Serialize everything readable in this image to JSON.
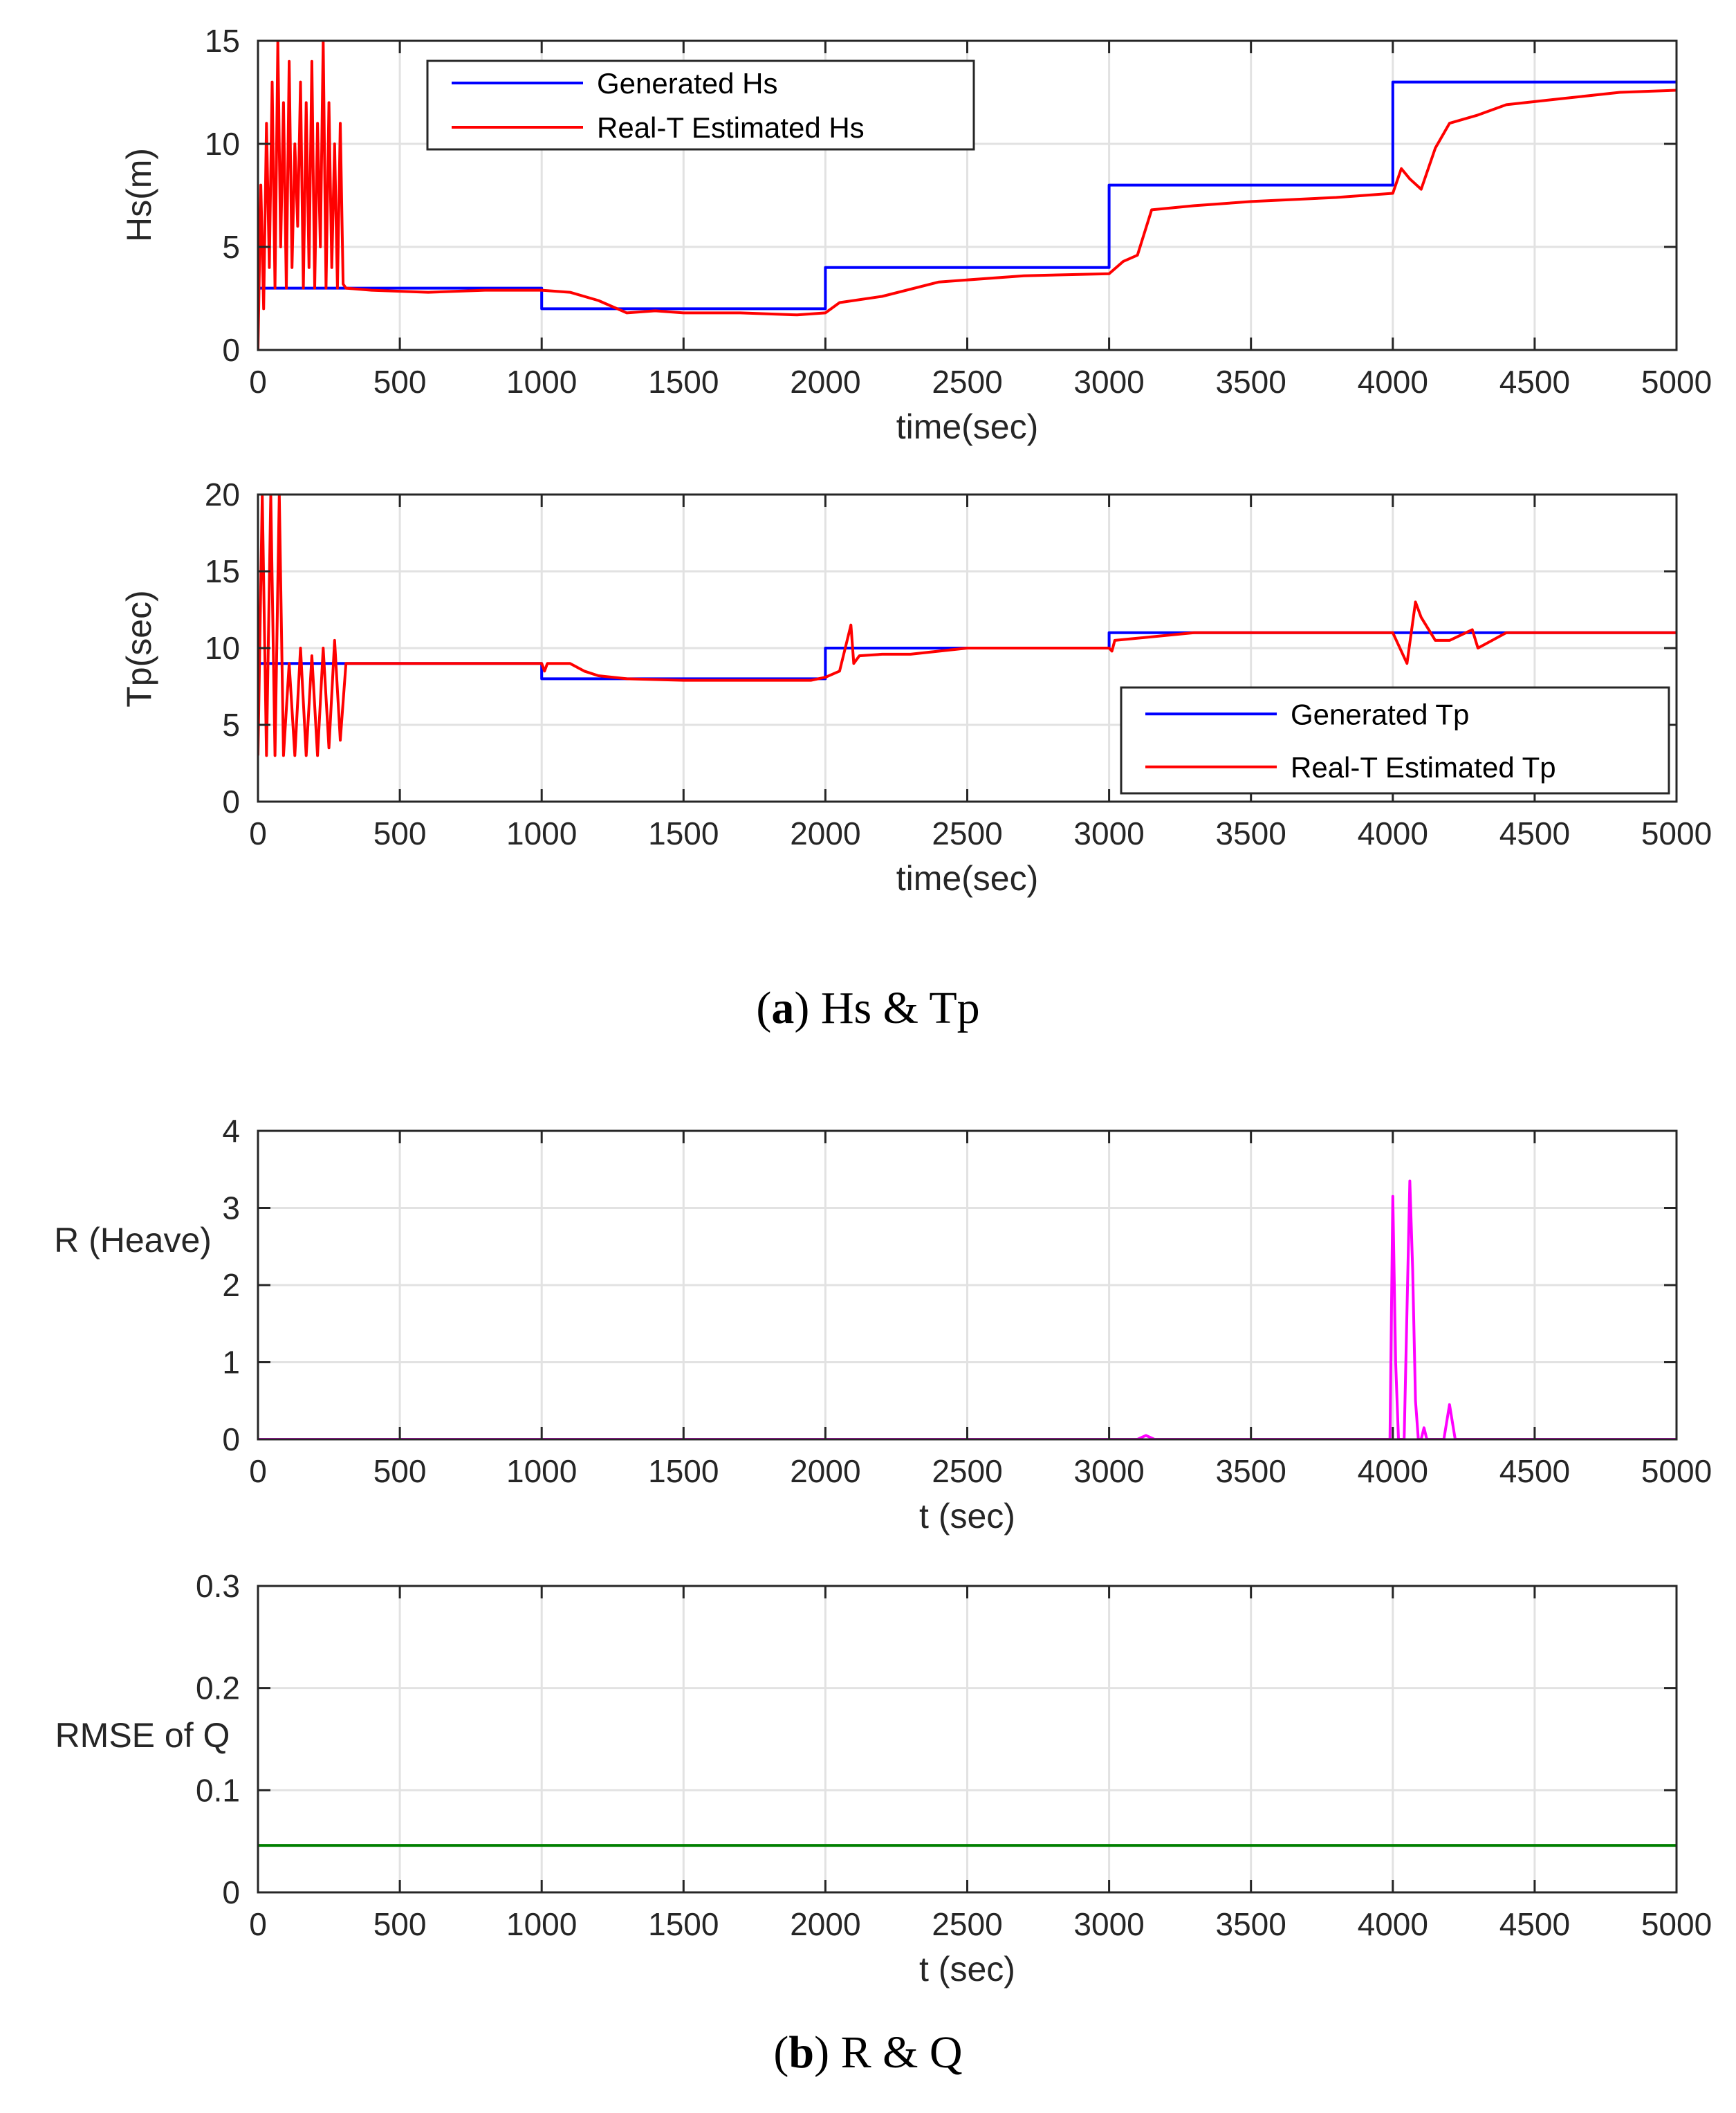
{
  "chart_data": [
    {
      "type": "line",
      "id": "hs",
      "xlabel": "time(sec)",
      "ylabel": "Hs(m)",
      "xlim": [
        0,
        5000
      ],
      "ylim": [
        0,
        15
      ],
      "xticks": [
        0,
        500,
        1000,
        1500,
        2000,
        2500,
        3000,
        3500,
        4000,
        4500,
        5000
      ],
      "yticks": [
        0,
        5,
        10,
        15
      ],
      "grid": true,
      "legend_position": "top-left",
      "series": [
        {
          "name": "Generated Hs",
          "color": "#0000ff",
          "x": [
            0,
            1000,
            1000,
            2000,
            2000,
            3000,
            3000,
            4000,
            4000,
            5000
          ],
          "y": [
            3,
            3,
            2,
            2,
            4,
            4,
            8,
            8,
            13,
            13
          ]
        },
        {
          "name": "Real-T Estimated Hs",
          "color": "#ff0000",
          "x": [
            0,
            10,
            20,
            30,
            40,
            50,
            60,
            70,
            80,
            90,
            100,
            110,
            120,
            130,
            140,
            150,
            160,
            170,
            180,
            190,
            200,
            210,
            220,
            230,
            240,
            250,
            260,
            270,
            280,
            290,
            300,
            310,
            400,
            600,
            800,
            1000,
            1100,
            1200,
            1300,
            1400,
            1500,
            1700,
            1900,
            2000,
            2050,
            2200,
            2400,
            2700,
            3000,
            3050,
            3100,
            3150,
            3300,
            3500,
            3800,
            4000,
            4030,
            4060,
            4100,
            4150,
            4200,
            4300,
            4400,
            4600,
            4800,
            5000
          ],
          "y": [
            0,
            8,
            2,
            11,
            4,
            13,
            3,
            15,
            5,
            12,
            3,
            14,
            4,
            10,
            6,
            13,
            3,
            12,
            4,
            14,
            3,
            11,
            5,
            15,
            3,
            12,
            4,
            10,
            3,
            11,
            3.2,
            3.0,
            2.9,
            2.8,
            2.9,
            2.9,
            2.8,
            2.4,
            1.8,
            1.9,
            1.8,
            1.8,
            1.7,
            1.8,
            2.3,
            2.6,
            3.3,
            3.6,
            3.7,
            4.3,
            4.6,
            6.8,
            7.0,
            7.2,
            7.4,
            7.6,
            8.8,
            8.3,
            7.8,
            9.8,
            11.0,
            11.4,
            11.9,
            12.2,
            12.5,
            12.6
          ]
        }
      ]
    },
    {
      "type": "line",
      "id": "tp",
      "xlabel": "time(sec)",
      "ylabel": "Tp(sec)",
      "xlim": [
        0,
        5000
      ],
      "ylim": [
        0,
        20
      ],
      "xticks": [
        0,
        500,
        1000,
        1500,
        2000,
        2500,
        3000,
        3500,
        4000,
        4500,
        5000
      ],
      "yticks": [
        0,
        5,
        10,
        15,
        20
      ],
      "grid": true,
      "legend_position": "bottom-right",
      "series": [
        {
          "name": "Generated Tp",
          "color": "#0000ff",
          "x": [
            0,
            1000,
            1000,
            2000,
            2000,
            3000,
            3000,
            4000,
            4000,
            5000
          ],
          "y": [
            9,
            9,
            8,
            8,
            10,
            10,
            11,
            11,
            11,
            11
          ]
        },
        {
          "name": "Real-T Estimated Tp",
          "color": "#ff0000",
          "x": [
            0,
            15,
            30,
            45,
            60,
            75,
            90,
            110,
            130,
            150,
            170,
            190,
            210,
            230,
            250,
            270,
            290,
            310,
            500,
            800,
            1000,
            1010,
            1020,
            1100,
            1150,
            1200,
            1300,
            1500,
            1800,
            1950,
            2000,
            2050,
            2090,
            2100,
            2120,
            2200,
            2300,
            2500,
            2800,
            3000,
            3010,
            3020,
            3300,
            3500,
            3800,
            4000,
            4050,
            4080,
            4100,
            4150,
            4200,
            4280,
            4300,
            4400,
            4500,
            4800,
            5000
          ],
          "y": [
            3,
            20,
            3,
            20,
            3,
            20,
            3,
            9,
            3,
            10,
            3,
            9.5,
            3,
            10,
            3.5,
            10.5,
            4,
            9,
            9,
            9,
            9,
            8.5,
            9,
            9,
            8.5,
            8.2,
            8,
            7.9,
            7.9,
            7.9,
            8.1,
            8.5,
            11.5,
            9,
            9.5,
            9.6,
            9.6,
            10,
            10,
            10,
            9.8,
            10.5,
            11,
            11,
            11,
            11,
            9,
            13,
            12,
            10.5,
            10.5,
            11.2,
            10,
            11,
            11,
            11,
            11
          ]
        }
      ]
    },
    {
      "type": "line",
      "id": "r",
      "xlabel": "t (sec)",
      "ylabel": "R (Heave)",
      "xlim": [
        0,
        5000
      ],
      "ylim": [
        0,
        4
      ],
      "xticks": [
        0,
        500,
        1000,
        1500,
        2000,
        2500,
        3000,
        3500,
        4000,
        4500,
        5000
      ],
      "yticks": [
        0,
        1,
        2,
        3,
        4
      ],
      "grid": true,
      "series": [
        {
          "name": "R",
          "color": "#ff00ff",
          "x": [
            0,
            3100,
            3130,
            3160,
            3990,
            4000,
            4010,
            4020,
            4040,
            4060,
            4070,
            4080,
            4090,
            4100,
            4110,
            4120,
            4130,
            4180,
            4200,
            4220,
            5000
          ],
          "y": [
            0,
            0,
            0.05,
            0,
            0,
            3.15,
            1.0,
            0,
            0,
            3.35,
            2.2,
            0.5,
            0,
            0,
            0.15,
            0,
            0,
            0,
            0.45,
            0,
            0
          ]
        }
      ]
    },
    {
      "type": "line",
      "id": "q",
      "xlabel": "t (sec)",
      "ylabel": "RMSE of Q",
      "xlim": [
        0,
        5000
      ],
      "ylim": [
        0,
        0.3
      ],
      "xticks": [
        0,
        500,
        1000,
        1500,
        2000,
        2500,
        3000,
        3500,
        4000,
        4500,
        5000
      ],
      "yticks": [
        0,
        0.1,
        0.2,
        0.3
      ],
      "grid": true,
      "series": [
        {
          "name": "RMSE of Q",
          "color": "#008000",
          "x": [
            0,
            5000
          ],
          "y": [
            0.046,
            0.046
          ]
        }
      ]
    }
  ],
  "captions": {
    "a": {
      "label": "a",
      "text": " Hs & Tp"
    },
    "b": {
      "label": "b",
      "text": " R & Q"
    }
  }
}
